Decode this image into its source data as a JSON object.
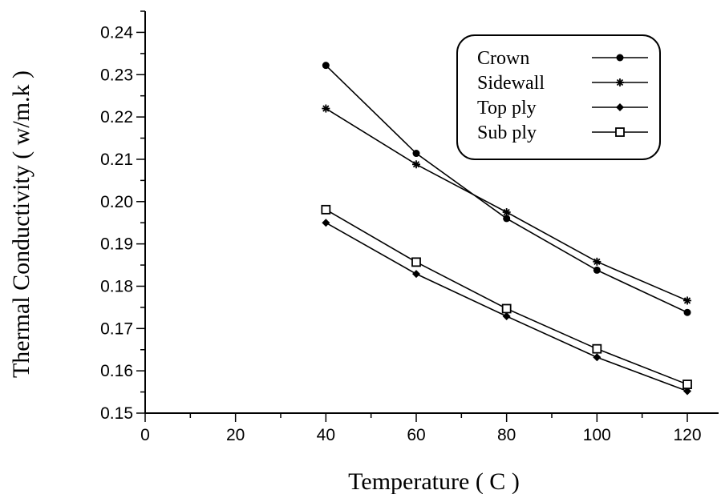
{
  "chart_data": {
    "type": "line",
    "title": "",
    "xlabel": "Temperature ( C )",
    "ylabel": "Thermal Conductivity ( w/m.k )",
    "xlim": [
      0,
      125
    ],
    "ylim": [
      0.15,
      0.245
    ],
    "xticks": [
      "0",
      "20",
      "40",
      "60",
      "80",
      "100",
      "120"
    ],
    "yticks": [
      "0.15",
      "0.16",
      "0.17",
      "0.18",
      "0.19",
      "0.20",
      "0.21",
      "0.22",
      "0.23",
      "0.24"
    ],
    "grid": false,
    "legend_position": "top-right",
    "x": [
      40,
      60,
      80,
      100,
      120
    ],
    "series": [
      {
        "name": "Crown",
        "marker": "filled-circle",
        "values": [
          0.2322,
          0.2114,
          0.196,
          0.1838,
          0.1738
        ]
      },
      {
        "name": "Sidewall",
        "marker": "asterisk",
        "values": [
          0.222,
          0.2088,
          0.1975,
          0.1858,
          0.1766
        ]
      },
      {
        "name": "Top ply",
        "marker": "filled-diamond",
        "values": [
          0.195,
          0.1829,
          0.1729,
          0.1632,
          0.1552
        ]
      },
      {
        "name": "Sub ply",
        "marker": "open-square",
        "values": [
          0.1981,
          0.1857,
          0.1747,
          0.1652,
          0.1568
        ]
      }
    ]
  }
}
